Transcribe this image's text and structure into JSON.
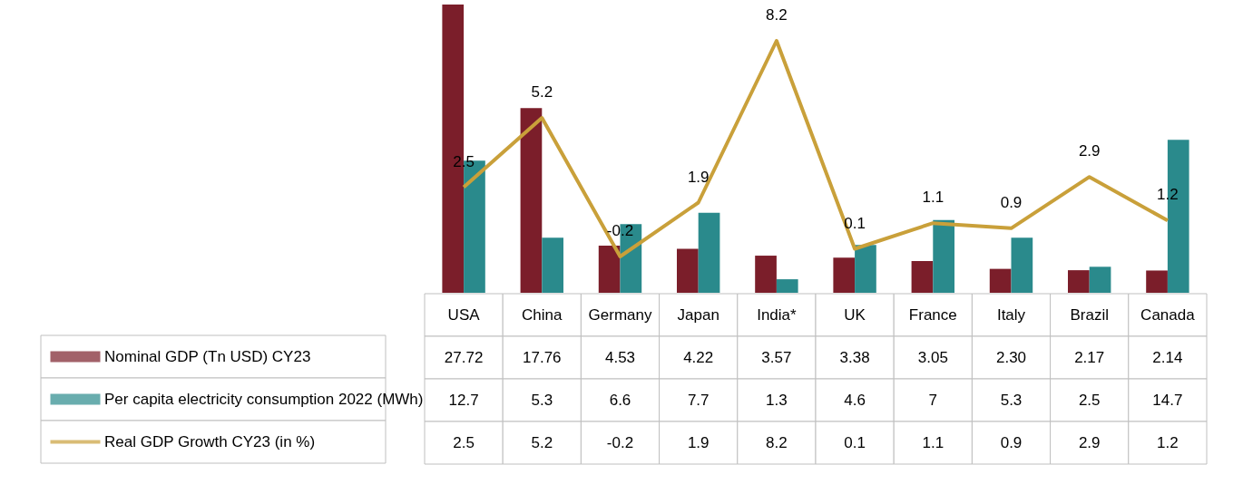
{
  "chart_data": {
    "type": "bar",
    "categories": [
      "USA",
      "China",
      "Germany",
      "Japan",
      "India*",
      "UK",
      "France",
      "Italy",
      "Brazil",
      "Canada"
    ],
    "series": [
      {
        "name": "Nominal GDP (Tn USD) CY23",
        "color": "#7b1e2a",
        "values": [
          27.72,
          17.76,
          4.53,
          4.22,
          3.57,
          3.38,
          3.05,
          2.3,
          2.17,
          2.14
        ],
        "value_labels": [
          "27.72",
          "17.76",
          "4.53",
          "4.22",
          "3.57",
          "3.38",
          "3.05",
          "2.30",
          "2.17",
          "2.14"
        ]
      },
      {
        "name": "Per capita electricity consumption 2022 (MWh)",
        "color": "#2a8a8c",
        "values": [
          12.7,
          5.3,
          6.6,
          7.7,
          1.3,
          4.6,
          7,
          5.3,
          2.5,
          14.7
        ],
        "value_labels": [
          "12.7",
          "5.3",
          "6.6",
          "7.7",
          "1.3",
          "4.6",
          "7",
          "5.3",
          "2.5",
          "14.7"
        ]
      },
      {
        "name": "Real GDP Growth CY23 (in %)",
        "type": "line",
        "axis": "y2",
        "color": "#c9a03a",
        "values": [
          2.5,
          5.2,
          -0.2,
          1.9,
          8.2,
          0.1,
          1.1,
          0.9,
          2.9,
          1.2
        ],
        "value_labels": [
          "2.5",
          "5.2",
          "-0.2",
          "1.9",
          "8.2",
          "0.1",
          "1.1",
          "0.9",
          "2.9",
          "1.2"
        ]
      }
    ],
    "tick_labels": false,
    "grid": false,
    "legend": "bottom",
    "marker": "none",
    "line_style": "solid"
  }
}
